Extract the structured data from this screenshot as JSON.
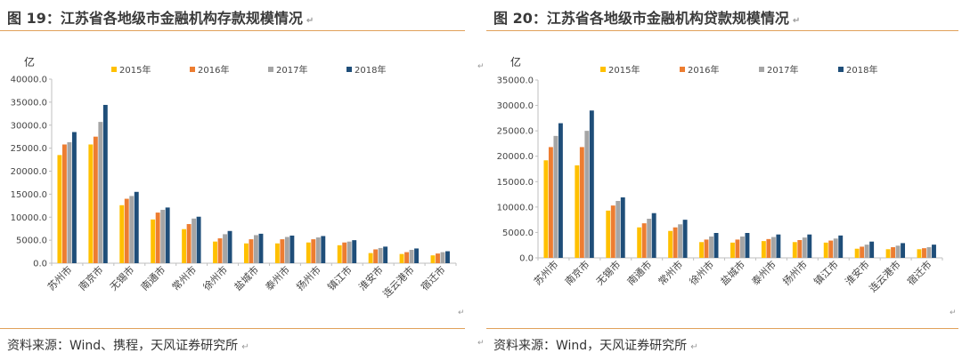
{
  "charts": [
    {
      "caption": "图 19：江苏省各地级市金融机构存款规模情况",
      "source": "资料来源：Wind、携程，天风证券研究所"
    },
    {
      "caption": "图 20：江苏省各地级市金融机构贷款规模情况",
      "source": "资料来源：Wind，天风证券研究所"
    }
  ],
  "chart_data": [
    {
      "type": "bar",
      "ylabel": "亿",
      "ylim": [
        0,
        40000
      ],
      "yticks": [
        "0.0",
        "5000.0",
        "10000.0",
        "15000.0",
        "20000.0",
        "25000.0",
        "30000.0",
        "35000.0",
        "40000.0"
      ],
      "legend_position": "top",
      "grid": false,
      "categories": [
        "苏州市",
        "南京市",
        "无锡市",
        "南通市",
        "常州市",
        "徐州市",
        "盐城市",
        "泰州市",
        "扬州市",
        "镇江市",
        "淮安市",
        "连云港市",
        "宿迁市"
      ],
      "series": [
        {
          "name": "2015年",
          "color": "#ffc000",
          "values": [
            23500,
            25800,
            12600,
            9500,
            7400,
            4700,
            4300,
            4300,
            4500,
            3900,
            2200,
            2000,
            1700
          ]
        },
        {
          "name": "2016年",
          "color": "#ed7d31",
          "values": [
            25800,
            27500,
            14000,
            11000,
            8500,
            5400,
            5200,
            5200,
            5200,
            4500,
            3000,
            2400,
            2100
          ]
        },
        {
          "name": "2017年",
          "color": "#a5a5a5",
          "values": [
            26300,
            30700,
            14600,
            11600,
            9700,
            6300,
            6100,
            5700,
            5600,
            4700,
            3300,
            2900,
            2400
          ]
        },
        {
          "name": "2018年",
          "color": "#1f4e79",
          "values": [
            28500,
            34400,
            15500,
            12100,
            10100,
            7000,
            6400,
            6000,
            5900,
            5000,
            3600,
            3200,
            2600
          ]
        }
      ]
    },
    {
      "type": "bar",
      "ylabel": "亿",
      "ylim": [
        0,
        35000
      ],
      "yticks": [
        "0.0",
        "5000.0",
        "10000.0",
        "15000.0",
        "20000.0",
        "25000.0",
        "30000.0",
        "35000.0"
      ],
      "legend_position": "top",
      "grid": false,
      "categories": [
        "苏州市",
        "南京市",
        "无锡市",
        "南通市",
        "常州市",
        "徐州市",
        "盐城市",
        "泰州市",
        "扬州市",
        "镇江市",
        "淮安市",
        "连云港市",
        "宿迁市"
      ],
      "series": [
        {
          "name": "2015年",
          "color": "#ffc000",
          "values": [
            19200,
            18200,
            9300,
            6000,
            5300,
            3100,
            3000,
            3300,
            3100,
            3000,
            1800,
            1700,
            1700
          ]
        },
        {
          "name": "2016年",
          "color": "#ed7d31",
          "values": [
            21800,
            21800,
            10300,
            6800,
            6000,
            3600,
            3600,
            3700,
            3500,
            3400,
            2200,
            2100,
            1900
          ]
        },
        {
          "name": "2017年",
          "color": "#a5a5a5",
          "values": [
            24000,
            25000,
            11200,
            7700,
            6600,
            4200,
            4200,
            4100,
            4000,
            3800,
            2600,
            2400,
            2100
          ]
        },
        {
          "name": "2018年",
          "color": "#1f4e79",
          "values": [
            26500,
            29000,
            11900,
            8800,
            7500,
            4900,
            4900,
            4600,
            4600,
            4400,
            3200,
            2900,
            2600
          ]
        }
      ]
    }
  ]
}
